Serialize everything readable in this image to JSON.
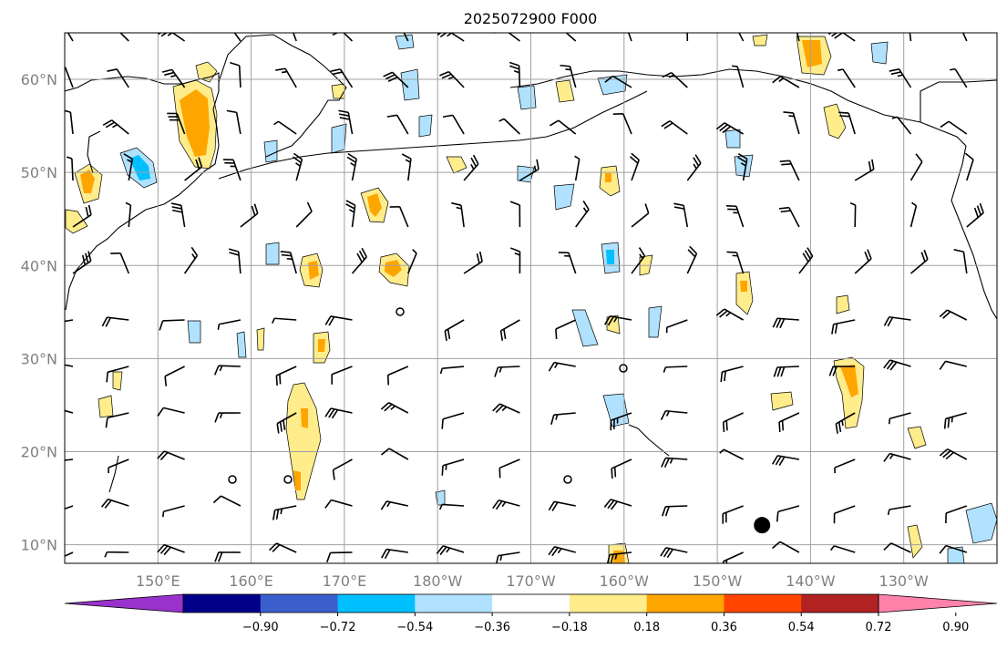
{
  "title": "2025072900 F000",
  "map": {
    "lat_labels": [
      {
        "text": "10°N",
        "lat": 10
      },
      {
        "text": "20°N",
        "lat": 20
      },
      {
        "text": "30°N",
        "lat": 30
      },
      {
        "text": "40°N",
        "lat": 40
      },
      {
        "text": "50°N",
        "lat": 50
      },
      {
        "text": "60°N",
        "lat": 60
      }
    ],
    "lon_labels": [
      {
        "text": "150°E",
        "lon": 150
      },
      {
        "text": "160°E",
        "lon": 160
      },
      {
        "text": "170°E",
        "lon": 170
      },
      {
        "text": "180°W",
        "lon": 180
      },
      {
        "text": "170°W",
        "lon": 190
      },
      {
        "text": "160°W",
        "lon": 200
      },
      {
        "text": "150°W",
        "lon": 210
      },
      {
        "text": "140°W",
        "lon": 220
      },
      {
        "text": "130°W",
        "lon": 230
      }
    ],
    "extent": {
      "lon_min": 140,
      "lon_max": 240,
      "lat_min": 8,
      "lat_max": 65
    },
    "colors": {
      "coast": "#000000",
      "grid": "#a0a0a0",
      "barb": "#000000"
    },
    "marker": {
      "lon": 214.8,
      "lat": 12.1
    }
  },
  "colorbar": {
    "ticks": [
      "−0.90",
      "−0.72",
      "−0.54",
      "−0.36",
      "−0.18",
      "0.18",
      "0.36",
      "0.54",
      "0.72",
      "0.90"
    ],
    "colors": [
      "#9932cc",
      "#00008b",
      "#3a5fcd",
      "#00bfff",
      "#b0e2ff",
      "#ffffff",
      "#ffec8b",
      "#ffa500",
      "#ff4500",
      "#b22222",
      "#ff82ab"
    ]
  }
}
